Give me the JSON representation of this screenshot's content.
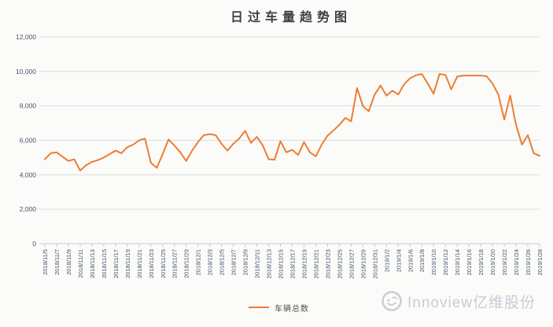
{
  "page": {
    "background": "#fbfbf9"
  },
  "chart_data": {
    "type": "line",
    "title": "日过车量趋势图",
    "legend_position": "bottom",
    "grid": "horizontal",
    "ylim": [
      0,
      12000
    ],
    "y_ticks": [
      "0",
      "2,000",
      "4,000",
      "6,000",
      "8,000",
      "10,000",
      "12,000"
    ],
    "x_tick_labels": [
      "2018/11/5",
      "2018/11/7",
      "2018/11/9",
      "2018/11/11",
      "2018/11/13",
      "2018/11/15",
      "2018/11/17",
      "2018/11/19",
      "2018/11/21",
      "2018/11/23",
      "2018/11/25",
      "2018/11/27",
      "2018/11/29",
      "2018/12/1",
      "2018/12/3",
      "2018/12/5",
      "2018/12/7",
      "2018/12/9",
      "2018/12/11",
      "2018/12/13",
      "2018/12/15",
      "2018/12/17",
      "2018/12/19",
      "2018/12/21",
      "2018/12/23",
      "2018/12/25",
      "2018/12/27",
      "2018/12/29",
      "2018/12/31",
      "2019/1/2",
      "2019/1/4",
      "2019/1/6",
      "2019/1/8",
      "2019/1/10",
      "2019/1/12",
      "2019/1/14",
      "2019/1/16",
      "2019/1/18",
      "2019/1/20",
      "2019/1/22",
      "2019/1/24",
      "2019/1/26",
      "2019/1/28"
    ],
    "points_per_tick": 2,
    "series": [
      {
        "name": "车辆总数",
        "values": [
          4900,
          5250,
          5300,
          5050,
          4800,
          4900,
          4250,
          4550,
          4750,
          4850,
          5000,
          5200,
          5400,
          5250,
          5600,
          5750,
          6000,
          6100,
          4700,
          4400,
          5200,
          6050,
          5700,
          5300,
          4800,
          5400,
          5900,
          6300,
          6350,
          6300,
          5800,
          5400,
          5800,
          6100,
          6550,
          5850,
          6200,
          5700,
          4900,
          4870,
          5950,
          5300,
          5450,
          5150,
          5900,
          5300,
          5070,
          5750,
          6270,
          6570,
          6900,
          7300,
          7100,
          9030,
          7980,
          7690,
          8660,
          9180,
          8590,
          8880,
          8660,
          9260,
          9600,
          9780,
          9850,
          9300,
          8700,
          9850,
          9800,
          8960,
          9700,
          9760,
          9760,
          9760,
          9760,
          9720,
          9300,
          8650,
          7200,
          8600,
          6900,
          5750,
          6300,
          5250,
          5100
        ]
      }
    ],
    "line_color": "#ED7D31",
    "label_color": "#44546A",
    "grid_color": "#DCDCDC",
    "axis_color": "#C8C8C8",
    "title_color": "#3F3F3F"
  },
  "legend": {
    "label": "车辆总数"
  },
  "watermark": {
    "text": "Innoview亿维股份"
  }
}
